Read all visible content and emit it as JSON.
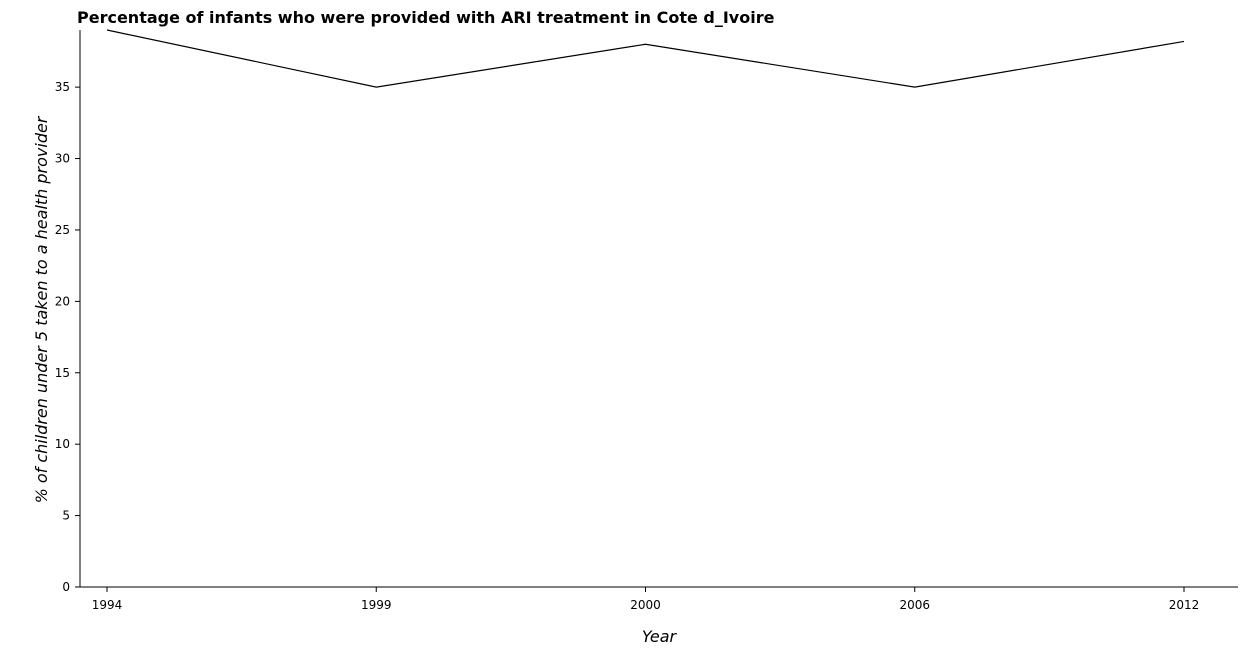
{
  "chart_data": {
    "type": "line",
    "title": "Percentage of infants who were provided with ARI treatment in Cote d_Ivoire",
    "xlabel": "Year",
    "ylabel": "% of children under 5 taken to a health provider",
    "categories": [
      "1994",
      "1999",
      "2000",
      "2006",
      "2012"
    ],
    "series": [
      {
        "values": [
          39,
          35,
          38,
          35,
          38.2
        ]
      }
    ],
    "ylim": [
      0,
      39
    ],
    "yticks": [
      "0",
      "5",
      "10",
      "15",
      "20",
      "25",
      "30",
      "35"
    ],
    "ytick_values": [
      0,
      5,
      10,
      15,
      20,
      25,
      30,
      35
    ],
    "grid": false,
    "line_color": "#000000"
  }
}
